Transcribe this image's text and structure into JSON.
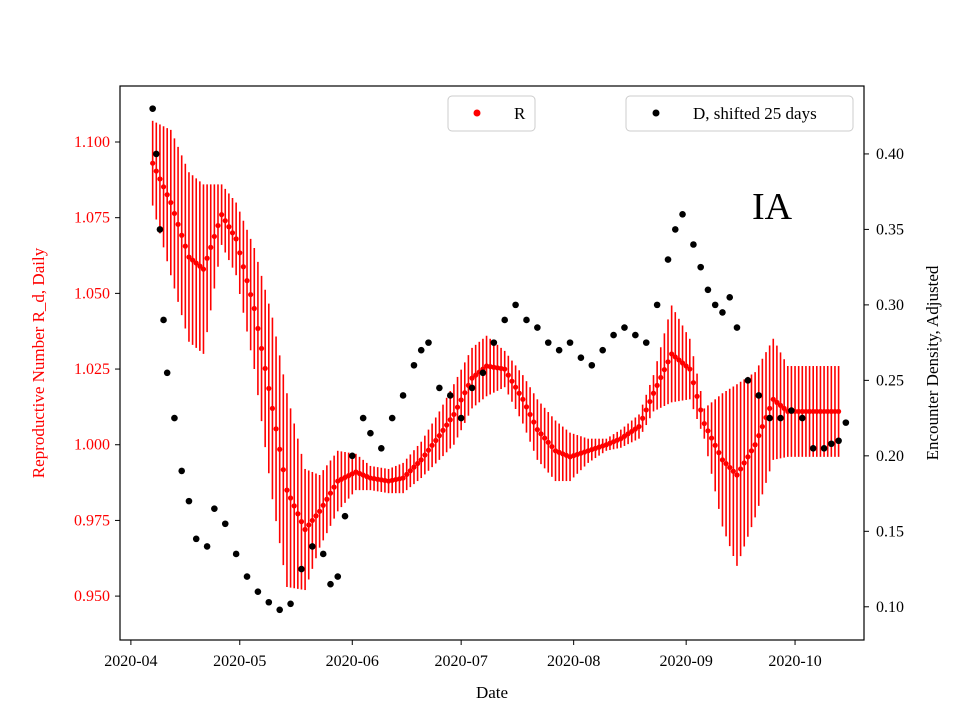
{
  "chart_data": {
    "type": "scatter",
    "annotation": "IA",
    "xlabel": "Date",
    "ylabel_left": "Reproductive Number R_d, Daily",
    "ylabel_right": "Encounter Density, Adjusted",
    "colors": {
      "left_axis": "#ff0000",
      "r_series": "#ff0000",
      "d_series": "#000000",
      "right_axis": "#000000"
    },
    "x_range": [
      "2020-03-29",
      "2020-10-20"
    ],
    "x_ticks": [
      "2020-04",
      "2020-05",
      "2020-06",
      "2020-07",
      "2020-08",
      "2020-09",
      "2020-10"
    ],
    "y_left_range": [
      0.9355,
      1.1185
    ],
    "y_left_ticks": [
      "0.950",
      "0.975",
      "1.000",
      "1.025",
      "1.050",
      "1.075",
      "1.100"
    ],
    "y_right_range": [
      0.078,
      0.445
    ],
    "y_right_ticks": [
      "0.10",
      "0.15",
      "0.20",
      "0.25",
      "0.30",
      "0.35",
      "0.40"
    ],
    "legend": [
      {
        "label": "R",
        "position": "upper-center"
      },
      {
        "label": "D, shifted 25 days",
        "position": "upper-right"
      }
    ],
    "series": [
      {
        "name": "R",
        "axis": "left",
        "style": "points with error bars",
        "dates": [
          "2020-04-07",
          "2020-04-12",
          "2020-04-17",
          "2020-04-21",
          "2020-04-26",
          "2020-04-30",
          "2020-05-05",
          "2020-05-10",
          "2020-05-14",
          "2020-05-19",
          "2020-05-23",
          "2020-05-28",
          "2020-06-02",
          "2020-06-06",
          "2020-06-11",
          "2020-06-15",
          "2020-06-20",
          "2020-06-25",
          "2020-06-29",
          "2020-07-04",
          "2020-07-08",
          "2020-07-13",
          "2020-07-18",
          "2020-07-22",
          "2020-07-27",
          "2020-07-31",
          "2020-08-05",
          "2020-08-10",
          "2020-08-14",
          "2020-08-19",
          "2020-08-23",
          "2020-08-28",
          "2020-09-02",
          "2020-09-06",
          "2020-09-11",
          "2020-09-15",
          "2020-09-20",
          "2020-09-25",
          "2020-09-29",
          "2020-10-04",
          "2020-10-09",
          "2020-10-13"
        ],
        "values": [
          1.093,
          1.08,
          1.062,
          1.058,
          1.076,
          1.068,
          1.045,
          1.012,
          0.985,
          0.972,
          0.978,
          0.988,
          0.991,
          0.989,
          0.988,
          0.989,
          0.995,
          1.003,
          1.01,
          1.022,
          1.026,
          1.025,
          1.015,
          1.005,
          0.998,
          0.996,
          0.998,
          1.0,
          1.002,
          1.006,
          1.017,
          1.03,
          1.025,
          1.007,
          0.995,
          0.99,
          1.0,
          1.015,
          1.011,
          1.011,
          1.011,
          1.011
        ],
        "errors": [
          0.014,
          0.024,
          0.028,
          0.028,
          0.01,
          0.012,
          0.02,
          0.03,
          0.032,
          0.02,
          0.012,
          0.01,
          0.006,
          0.004,
          0.004,
          0.005,
          0.006,
          0.008,
          0.01,
          0.01,
          0.01,
          0.006,
          0.008,
          0.01,
          0.01,
          0.008,
          0.004,
          0.002,
          0.003,
          0.004,
          0.006,
          0.016,
          0.01,
          0.005,
          0.022,
          0.03,
          0.024,
          0.02,
          0.015,
          0.015,
          0.015,
          0.015
        ]
      },
      {
        "name": "D, shifted 25 days",
        "axis": "right",
        "style": "points",
        "dates": [
          "2020-04-07",
          "2020-04-08",
          "2020-04-09",
          "2020-04-10",
          "2020-04-11",
          "2020-04-13",
          "2020-04-15",
          "2020-04-17",
          "2020-04-19",
          "2020-04-22",
          "2020-04-24",
          "2020-04-27",
          "2020-04-30",
          "2020-05-03",
          "2020-05-06",
          "2020-05-09",
          "2020-05-12",
          "2020-05-15",
          "2020-05-18",
          "2020-05-21",
          "2020-05-24",
          "2020-05-26",
          "2020-05-28",
          "2020-05-30",
          "2020-06-01",
          "2020-06-04",
          "2020-06-06",
          "2020-06-09",
          "2020-06-12",
          "2020-06-15",
          "2020-06-18",
          "2020-06-20",
          "2020-06-22",
          "2020-06-25",
          "2020-06-28",
          "2020-07-01",
          "2020-07-04",
          "2020-07-07",
          "2020-07-10",
          "2020-07-13",
          "2020-07-16",
          "2020-07-19",
          "2020-07-22",
          "2020-07-25",
          "2020-07-28",
          "2020-07-31",
          "2020-08-03",
          "2020-08-06",
          "2020-08-09",
          "2020-08-12",
          "2020-08-15",
          "2020-08-18",
          "2020-08-21",
          "2020-08-24",
          "2020-08-27",
          "2020-08-29",
          "2020-08-31",
          "2020-09-03",
          "2020-09-05",
          "2020-09-07",
          "2020-09-09",
          "2020-09-11",
          "2020-09-13",
          "2020-09-15",
          "2020-09-18",
          "2020-09-21",
          "2020-09-24",
          "2020-09-27",
          "2020-09-30",
          "2020-10-03",
          "2020-10-06",
          "2020-10-09",
          "2020-10-11",
          "2020-10-13",
          "2020-10-15"
        ],
        "values": [
          0.43,
          0.4,
          0.35,
          0.29,
          0.255,
          0.225,
          0.19,
          0.17,
          0.145,
          0.14,
          0.165,
          0.155,
          0.135,
          0.12,
          0.11,
          0.103,
          0.098,
          0.102,
          0.125,
          0.14,
          0.135,
          0.115,
          0.12,
          0.16,
          0.2,
          0.225,
          0.215,
          0.205,
          0.225,
          0.24,
          0.26,
          0.27,
          0.275,
          0.245,
          0.24,
          0.225,
          0.245,
          0.255,
          0.275,
          0.29,
          0.3,
          0.29,
          0.285,
          0.275,
          0.27,
          0.275,
          0.265,
          0.26,
          0.27,
          0.28,
          0.285,
          0.28,
          0.275,
          0.3,
          0.33,
          0.35,
          0.36,
          0.34,
          0.325,
          0.31,
          0.3,
          0.295,
          0.305,
          0.285,
          0.25,
          0.24,
          0.225,
          0.225,
          0.23,
          0.225,
          0.205,
          0.205,
          0.208,
          0.21,
          0.222
        ]
      }
    ]
  }
}
